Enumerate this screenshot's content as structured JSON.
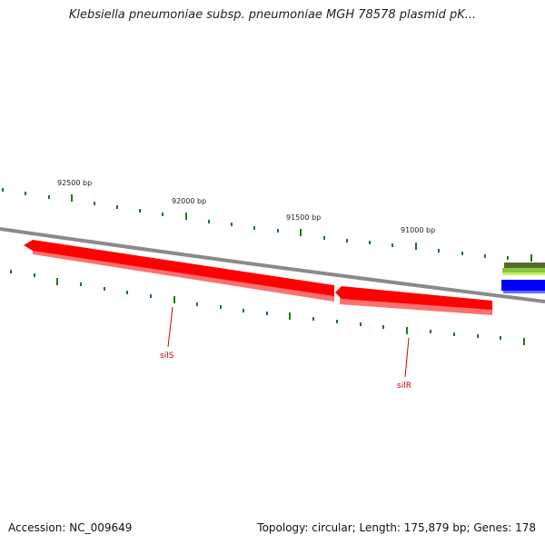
{
  "title": "Klebsiella pneumoniae subsp. pneumoniae MGH 78578 plasmid pK...",
  "footer": {
    "accession": "Accession: NC_009649",
    "summary": "Topology: circular; Length: 175,879 bp; Genes: 178"
  },
  "scale_labels": [
    "92500 bp",
    "92000 bp",
    "91500 bp",
    "91000 bp"
  ],
  "genes": [
    {
      "name": "silS",
      "color": "#cc0000",
      "fill": "#ff0000"
    },
    {
      "name": "silR",
      "color": "#cc0000",
      "fill": "#ff0000"
    }
  ],
  "colors": {
    "backbone": "#8a8a8a",
    "tick": "#1a7a1a",
    "gene": "#ff0000",
    "gene_label": "#cc0000",
    "feature_green": "#8ec63f",
    "feature_olive": "#556b2f",
    "feature_blue": "#0000ff"
  }
}
